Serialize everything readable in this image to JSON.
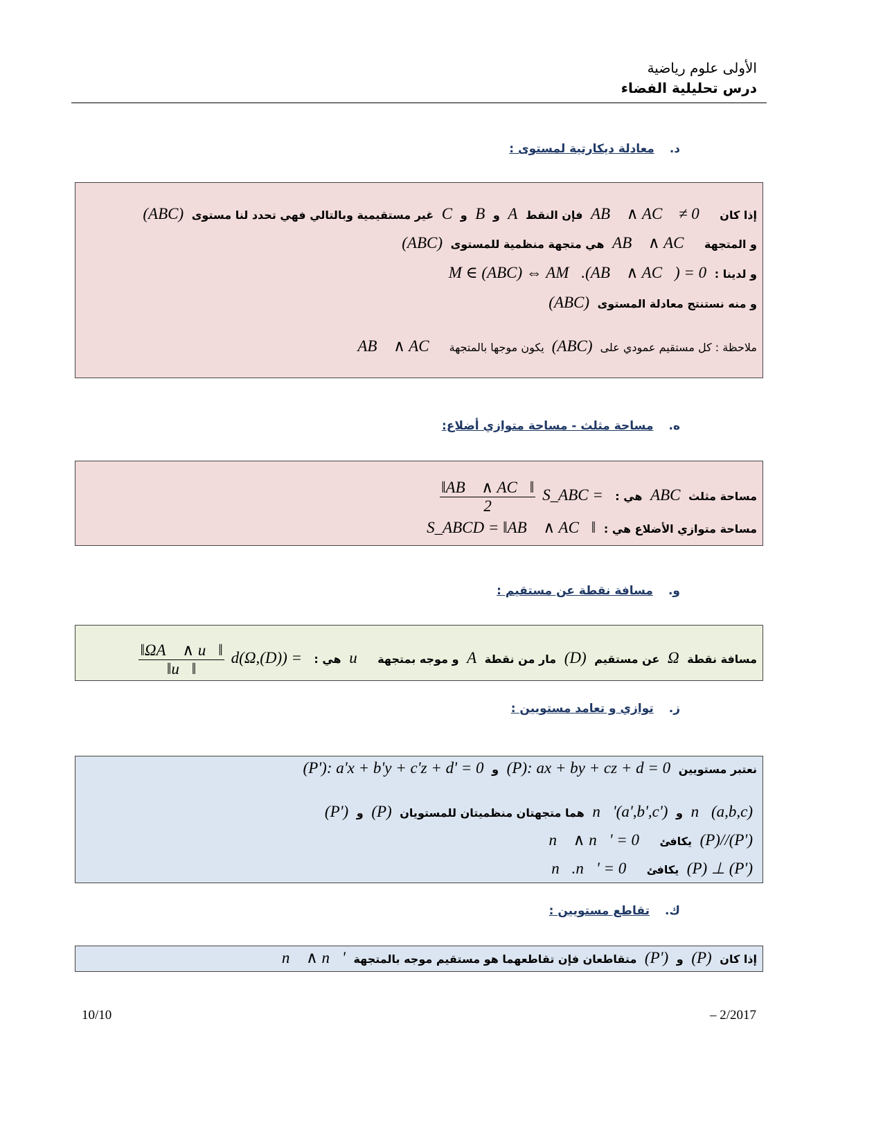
{
  "header": {
    "level": "الأولى علوم رياضية",
    "lesson": "درس تحليلية الفضاء"
  },
  "sections": [
    {
      "num": "د.",
      "title": "معادلة ديكارتية لمستوى :",
      "lines": [
        [
          [
            "ar",
            "إذا كان"
          ],
          [
            "m",
            "AB⃗ ∧ AC⃗ ≠ 0⃗"
          ],
          [
            "ar",
            "فإن النقط"
          ],
          [
            "m",
            "A"
          ],
          [
            "ar",
            "و"
          ],
          [
            "m",
            "B"
          ],
          [
            "ar",
            "و"
          ],
          [
            "m",
            "C"
          ],
          [
            "ar",
            "غير مستقيمية وبالتالي فهي تحدد لنا مستوى"
          ],
          [
            "m",
            "(ABC)"
          ]
        ],
        [
          [
            "ar",
            "و المتجهة"
          ],
          [
            "m",
            "AB⃗ ∧ AC⃗"
          ],
          [
            "ar",
            "هي متجهة منظمية للمستوى"
          ],
          [
            "m",
            "(ABC)"
          ]
        ],
        [
          [
            "ar",
            "و لدينا :"
          ],
          [
            "m",
            "M ∈ (ABC) ⇔ AM⃗.(AB⃗ ∧ AC⃗) = 0"
          ]
        ],
        [
          [
            "ar",
            "و منه نستنتج معادلة المستوى"
          ],
          [
            "m",
            "(ABC)"
          ]
        ],
        [
          [
            "ar",
            "ملاحظة : كل مستقيم عمودي على"
          ],
          [
            "m",
            "(ABC)"
          ],
          [
            "ar",
            "يكون موجها بالمتجهة"
          ],
          [
            "m",
            "AB⃗ ∧ AC⃗"
          ]
        ]
      ]
    },
    {
      "num": "ه.",
      "title": "مساحة مثلث  - مساحة متوازي أضلاع:",
      "lines": [
        [
          [
            "ar",
            "مساحة مثلث"
          ],
          [
            "m",
            "ABC"
          ],
          [
            "ar",
            "هي :"
          ],
          [
            "m",
            "S_ABC = "
          ],
          [
            "frac",
            "‖AB⃗ ∧ AC⃗‖",
            "2"
          ]
        ],
        [
          [
            "ar",
            "مساحة متوازي الأضلاع  هي :"
          ],
          [
            "m",
            "S_ABCD = ‖AB⃗ ∧ AC⃗‖"
          ]
        ]
      ]
    },
    {
      "num": "و.",
      "title": "مسافة نقطة عن مستقيم :",
      "lines": [
        [
          [
            "ar",
            "مسافة نقطة"
          ],
          [
            "m",
            "Ω"
          ],
          [
            "ar",
            "عن مستقيم"
          ],
          [
            "m",
            "(D)"
          ],
          [
            "ar",
            "مار من نقطة"
          ],
          [
            "m",
            "A"
          ],
          [
            "ar",
            "و موجه بمتجهة"
          ],
          [
            "m",
            "u⃗"
          ],
          [
            "ar",
            "هي :"
          ],
          [
            "m",
            "d(Ω,(D)) = "
          ],
          [
            "frac",
            "‖ΩA⃗ ∧ u⃗‖",
            "‖u⃗‖"
          ]
        ]
      ]
    },
    {
      "num": "ز.",
      "title": "توازي و تعامد مستويين :",
      "lines": [
        [
          [
            "ar",
            "نعتبر مستويين"
          ],
          [
            "m",
            "(P): ax + by + cz + d = 0"
          ],
          [
            "ar",
            "و"
          ],
          [
            "m",
            "(P'): a'x + b'y + c'z + d' = 0"
          ]
        ],
        [
          [
            "m",
            "n⃗(a,b,c)"
          ],
          [
            "ar",
            "و"
          ],
          [
            "m",
            "n⃗'(a',b',c')"
          ],
          [
            "ar",
            "هما متجهتان منظميتان للمستويان"
          ],
          [
            "m",
            "(P)"
          ],
          [
            "ar",
            "و"
          ],
          [
            "m",
            "(P')"
          ]
        ],
        [
          [
            "m",
            "(P)//(P')"
          ],
          [
            "ar",
            "يكافئ"
          ],
          [
            "m",
            "n⃗ ∧ n⃗' = 0⃗"
          ]
        ],
        [
          [
            "m",
            "(P) ⊥ (P')"
          ],
          [
            "ar",
            "يكافئ"
          ],
          [
            "m",
            "n⃗.n⃗' = 0⃗"
          ]
        ]
      ]
    },
    {
      "num": "ك.",
      "title": "تقاطع مستويين :",
      "lines": [
        [
          [
            "ar",
            "إذا كان"
          ],
          [
            "m",
            "(P)"
          ],
          [
            "ar",
            "و"
          ],
          [
            "m",
            "(P')"
          ],
          [
            "ar",
            "متقاطعان فإن تقاطعهما هو مستقيم موجه بالمتجهة"
          ],
          [
            "m",
            "n⃗ ∧ n⃗'"
          ]
        ]
      ]
    }
  ],
  "footer": {
    "page": "10/10",
    "date": "– 2/2017"
  },
  "colors": {
    "heading": "#1f3864",
    "pink": "#f2dcdb",
    "green": "#ebf1de",
    "blue": "#dbe5f1"
  }
}
